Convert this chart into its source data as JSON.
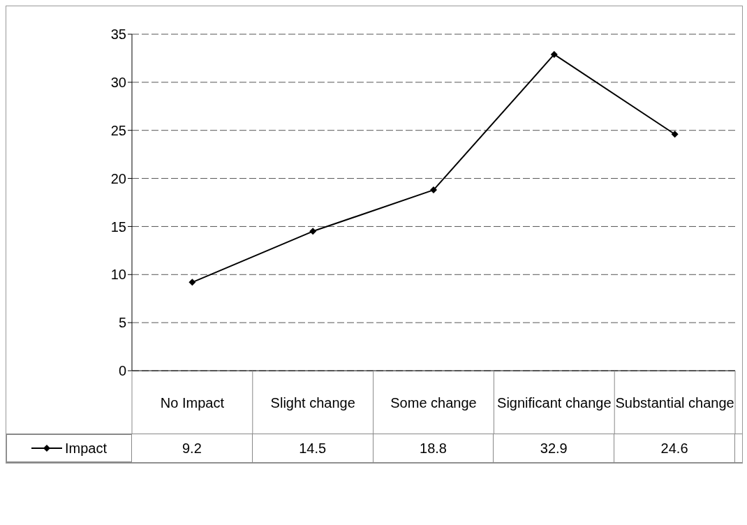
{
  "chart_data": {
    "type": "line",
    "categories": [
      "No Impact",
      "Slight change",
      "Some change",
      "Significant change",
      "Substantial change"
    ],
    "series": [
      {
        "name": "Impact",
        "color": "#000000",
        "values": [
          9.2,
          14.5,
          18.8,
          32.9,
          24.6
        ]
      }
    ],
    "ylim": [
      0,
      35
    ],
    "yticks": [
      0,
      5,
      10,
      15,
      20,
      25,
      30,
      35
    ],
    "grid": "y",
    "legend": "bottom left",
    "marker": "diamond",
    "line_style": "solid",
    "data_labels": true
  }
}
